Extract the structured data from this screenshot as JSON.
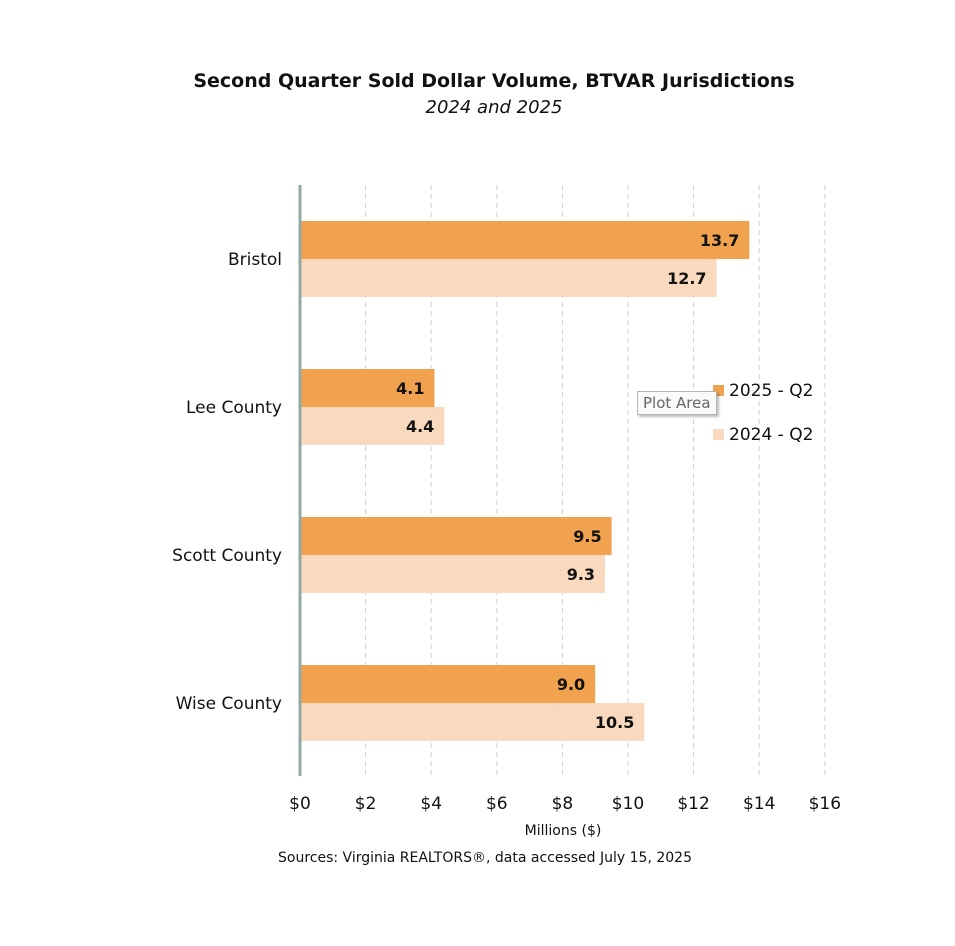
{
  "chart_data": {
    "type": "bar",
    "orientation": "horizontal",
    "title": "Second Quarter Sold Dollar Volume, BTVAR Jurisdictions",
    "subtitle": "2024 and 2025",
    "categories": [
      "Bristol",
      "Lee County",
      "Scott County",
      "Wise County"
    ],
    "series": [
      {
        "name": "2025 - Q2",
        "color": "#f0a24e",
        "values": [
          13.7,
          4.1,
          9.5,
          9.0
        ],
        "labels": [
          "13.7",
          "4.1",
          "9.5",
          "9.0"
        ]
      },
      {
        "name": "2024 - Q2",
        "color": "#f9dabe",
        "values": [
          12.7,
          4.4,
          9.3,
          10.5
        ],
        "labels": [
          "12.7",
          "4.4",
          "9.3",
          "10.5"
        ]
      }
    ],
    "xlabel": "Millions ($)",
    "xlim": [
      0,
      16
    ],
    "xticks": [
      0,
      2,
      4,
      6,
      8,
      10,
      12,
      14,
      16
    ],
    "xtick_labels": [
      "$0",
      "$2",
      "$4",
      "$6",
      "$8",
      "$10",
      "$12",
      "$14",
      "$16"
    ],
    "grid": "vertical-dashed",
    "legend_position": "right",
    "source": "Sources: Virginia REALTORS®, data accessed July 15, 2025"
  },
  "tooltip": "Plot Area"
}
